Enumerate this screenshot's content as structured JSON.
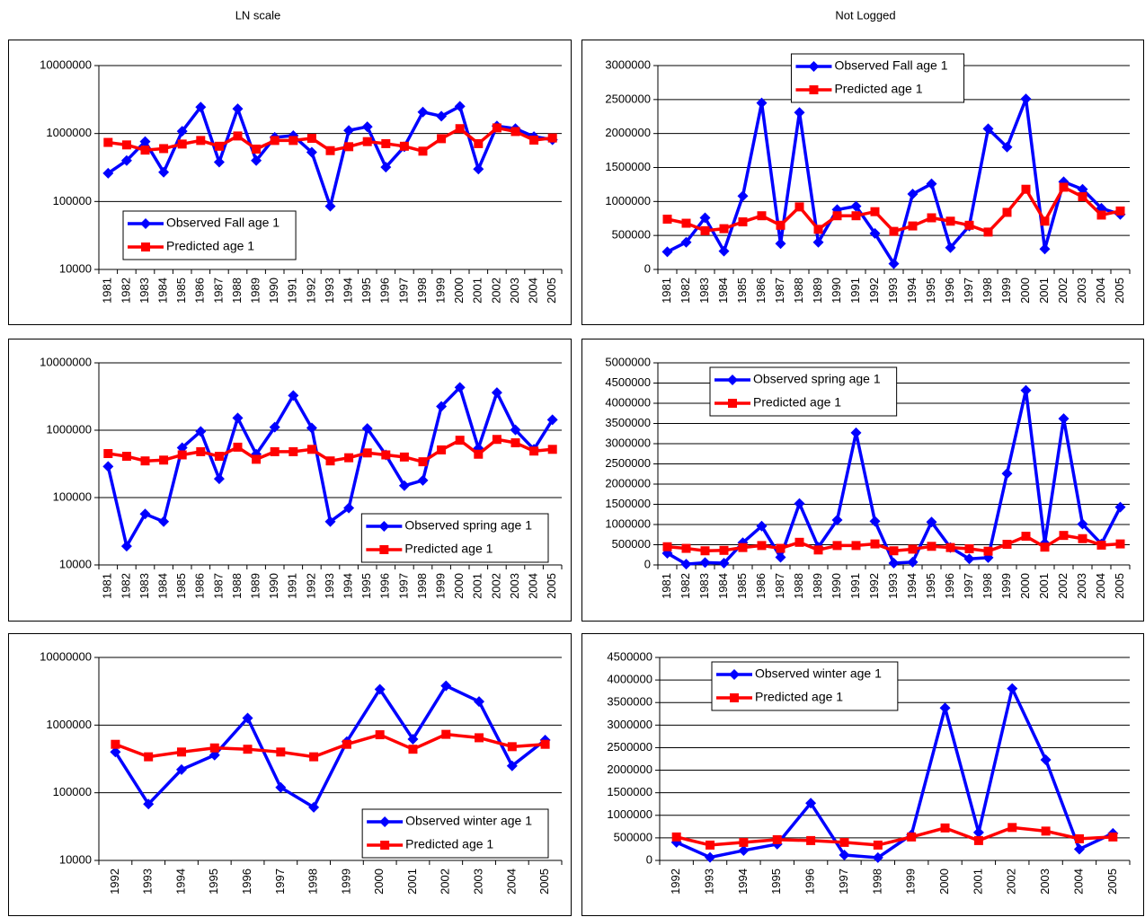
{
  "headings": [
    "LN scale",
    "Not Logged"
  ],
  "chart_data": [
    {
      "type": "line",
      "log_y": true,
      "legend": "lower left",
      "categories": [
        "1981",
        "1982",
        "1983",
        "1984",
        "1985",
        "1986",
        "1987",
        "1988",
        "1989",
        "1990",
        "1991",
        "1992",
        "1993",
        "1994",
        "1995",
        "1996",
        "1997",
        "1998",
        "1999",
        "2000",
        "2001",
        "2002",
        "2003",
        "2004",
        "2005"
      ],
      "ylim": [
        10000,
        10000000
      ],
      "yticks": [
        10000,
        100000,
        1000000,
        10000000
      ],
      "grid": true,
      "series": [
        {
          "name": "Observed Fall age 1",
          "color": "#0000ff",
          "marker": "diamond",
          "values": [
            260000,
            400000,
            760000,
            270000,
            1080000,
            2450000,
            380000,
            2310000,
            400000,
            880000,
            930000,
            530000,
            85000,
            1110000,
            1260000,
            320000,
            640000,
            2070000,
            1800000,
            2510000,
            300000,
            1290000,
            1180000,
            900000,
            810000
          ]
        },
        {
          "name": "Predicted age 1",
          "color": "#ff0000",
          "marker": "square",
          "values": [
            740000,
            680000,
            570000,
            600000,
            700000,
            790000,
            650000,
            920000,
            590000,
            790000,
            790000,
            850000,
            560000,
            640000,
            760000,
            710000,
            650000,
            550000,
            840000,
            1180000,
            710000,
            1210000,
            1070000,
            800000,
            860000
          ]
        }
      ]
    },
    {
      "type": "line",
      "log_y": false,
      "legend": "upper center",
      "categories": [
        "1981",
        "1982",
        "1983",
        "1984",
        "1985",
        "1986",
        "1987",
        "1988",
        "1989",
        "1990",
        "1991",
        "1992",
        "1993",
        "1994",
        "1995",
        "1996",
        "1997",
        "1998",
        "1999",
        "2000",
        "2001",
        "2002",
        "2003",
        "2004",
        "2005"
      ],
      "ylim": [
        0,
        3000000
      ],
      "yticks": [
        0,
        500000,
        1000000,
        1500000,
        2000000,
        2500000,
        3000000
      ],
      "grid": true,
      "series": [
        {
          "name": "Observed Fall age 1",
          "color": "#0000ff",
          "marker": "diamond",
          "values": [
            260000,
            400000,
            760000,
            270000,
            1080000,
            2450000,
            380000,
            2310000,
            400000,
            880000,
            930000,
            530000,
            85000,
            1110000,
            1260000,
            320000,
            640000,
            2070000,
            1800000,
            2510000,
            300000,
            1290000,
            1180000,
            900000,
            810000
          ]
        },
        {
          "name": "Predicted age 1",
          "color": "#ff0000",
          "marker": "square",
          "values": [
            740000,
            680000,
            570000,
            600000,
            700000,
            790000,
            650000,
            920000,
            590000,
            790000,
            790000,
            850000,
            560000,
            640000,
            760000,
            710000,
            650000,
            550000,
            840000,
            1180000,
            710000,
            1210000,
            1070000,
            800000,
            860000
          ]
        }
      ]
    },
    {
      "type": "line",
      "log_y": true,
      "legend": "lower right",
      "categories": [
        "1981",
        "1982",
        "1983",
        "1984",
        "1985",
        "1986",
        "1987",
        "1988",
        "1989",
        "1990",
        "1991",
        "1992",
        "1993",
        "1994",
        "1995",
        "1996",
        "1997",
        "1998",
        "1999",
        "2000",
        "2001",
        "2002",
        "2003",
        "2004",
        "2005"
      ],
      "ylim": [
        10000,
        10000000
      ],
      "yticks": [
        10000,
        100000,
        1000000,
        10000000
      ],
      "grid": true,
      "series": [
        {
          "name": "Observed spring age 1",
          "color": "#0000ff",
          "marker": "diamond",
          "values": [
            290000,
            19000,
            57000,
            44000,
            550000,
            960000,
            190000,
            1520000,
            440000,
            1110000,
            3270000,
            1080000,
            44000,
            70000,
            1060000,
            430000,
            150000,
            180000,
            2260000,
            4320000,
            540000,
            3620000,
            1010000,
            520000,
            1430000
          ]
        },
        {
          "name": "Predicted age 1",
          "color": "#ff0000",
          "marker": "square",
          "values": [
            450000,
            410000,
            350000,
            360000,
            430000,
            480000,
            410000,
            560000,
            370000,
            480000,
            480000,
            520000,
            350000,
            390000,
            460000,
            430000,
            400000,
            340000,
            510000,
            710000,
            440000,
            730000,
            650000,
            490000,
            520000
          ]
        }
      ]
    },
    {
      "type": "line",
      "log_y": false,
      "legend": "upper left",
      "categories": [
        "1981",
        "1982",
        "1983",
        "1984",
        "1985",
        "1986",
        "1987",
        "1988",
        "1989",
        "1990",
        "1991",
        "1992",
        "1993",
        "1994",
        "1995",
        "1996",
        "1997",
        "1998",
        "1999",
        "2000",
        "2001",
        "2002",
        "2003",
        "2004",
        "2005"
      ],
      "ylim": [
        0,
        5000000
      ],
      "yticks": [
        0,
        500000,
        1000000,
        1500000,
        2000000,
        2500000,
        3000000,
        3500000,
        4000000,
        4500000,
        5000000
      ],
      "grid": true,
      "series": [
        {
          "name": "Observed spring age 1",
          "color": "#0000ff",
          "marker": "diamond",
          "values": [
            290000,
            19000,
            57000,
            44000,
            550000,
            960000,
            190000,
            1520000,
            440000,
            1110000,
            3270000,
            1080000,
            44000,
            70000,
            1060000,
            430000,
            150000,
            180000,
            2260000,
            4320000,
            540000,
            3620000,
            1010000,
            520000,
            1430000
          ]
        },
        {
          "name": "Predicted age 1",
          "color": "#ff0000",
          "marker": "square",
          "values": [
            450000,
            410000,
            350000,
            360000,
            430000,
            480000,
            410000,
            560000,
            370000,
            480000,
            480000,
            520000,
            350000,
            390000,
            460000,
            430000,
            400000,
            340000,
            510000,
            710000,
            440000,
            730000,
            650000,
            490000,
            520000
          ]
        }
      ]
    },
    {
      "type": "line",
      "log_y": true,
      "legend": "lower right",
      "categories": [
        "1992",
        "1993",
        "1994",
        "1995",
        "1996",
        "1997",
        "1998",
        "1999",
        "2000",
        "2001",
        "2002",
        "2003",
        "2004",
        "2005"
      ],
      "ylim": [
        10000,
        10000000
      ],
      "yticks": [
        10000,
        100000,
        1000000,
        10000000
      ],
      "grid": true,
      "series": [
        {
          "name": "Observed winter age 1",
          "color": "#0000ff",
          "marker": "diamond",
          "values": [
            400000,
            68000,
            220000,
            360000,
            1270000,
            120000,
            61000,
            570000,
            3380000,
            620000,
            3810000,
            2230000,
            250000,
            600000
          ]
        },
        {
          "name": "Predicted age 1",
          "color": "#ff0000",
          "marker": "square",
          "values": [
            520000,
            340000,
            400000,
            460000,
            440000,
            400000,
            340000,
            520000,
            720000,
            440000,
            730000,
            650000,
            480000,
            520000
          ]
        }
      ]
    },
    {
      "type": "line",
      "log_y": false,
      "legend": "upper left",
      "categories": [
        "1992",
        "1993",
        "1994",
        "1995",
        "1996",
        "1997",
        "1998",
        "1999",
        "2000",
        "2001",
        "2002",
        "2003",
        "2004",
        "2005"
      ],
      "ylim": [
        0,
        4500000
      ],
      "yticks": [
        0,
        500000,
        1000000,
        1500000,
        2000000,
        2500000,
        3000000,
        3500000,
        4000000,
        4500000
      ],
      "grid": true,
      "series": [
        {
          "name": "Observed winter age 1",
          "color": "#0000ff",
          "marker": "diamond",
          "values": [
            400000,
            68000,
            220000,
            360000,
            1270000,
            120000,
            61000,
            570000,
            3380000,
            620000,
            3810000,
            2230000,
            250000,
            600000
          ]
        },
        {
          "name": "Predicted age 1",
          "color": "#ff0000",
          "marker": "square",
          "values": [
            520000,
            340000,
            400000,
            460000,
            440000,
            400000,
            340000,
            520000,
            720000,
            440000,
            730000,
            650000,
            480000,
            520000
          ]
        }
      ]
    }
  ]
}
